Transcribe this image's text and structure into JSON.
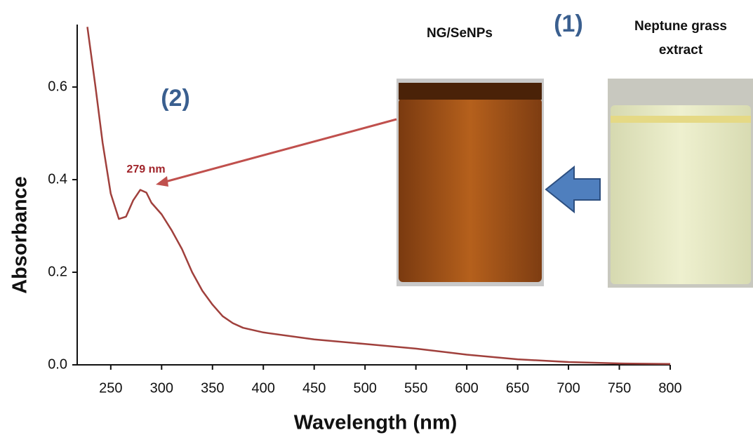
{
  "chart_data": {
    "type": "line",
    "x_label": "Wavelength (nm)",
    "y_label": "Absorbance",
    "annotations": {
      "panel_1": "(1)",
      "panel_2": "(2)",
      "peak": "279 nm",
      "photo_left": "NG/SeNPs",
      "photo_right": [
        "Neptune grass",
        "extract"
      ]
    },
    "x": [
      227,
      235,
      242,
      250,
      258,
      265,
      272,
      279,
      285,
      290,
      300,
      310,
      320,
      330,
      340,
      350,
      360,
      370,
      380,
      400,
      450,
      500,
      550,
      600,
      650,
      700,
      750,
      800
    ],
    "series": [
      {
        "color": "#a0403c",
        "values": [
          0.73,
          0.6,
          0.48,
          0.37,
          0.315,
          0.32,
          0.355,
          0.378,
          0.372,
          0.35,
          0.325,
          0.29,
          0.25,
          0.2,
          0.16,
          0.13,
          0.105,
          0.09,
          0.08,
          0.07,
          0.055,
          0.045,
          0.035,
          0.022,
          0.012,
          0.006,
          0.003,
          0.002
        ]
      }
    ],
    "xlim": [
      217,
      800
    ],
    "xticks": [
      250,
      300,
      350,
      400,
      450,
      500,
      550,
      600,
      650,
      700,
      750,
      800
    ],
    "ylim": [
      0,
      0.735
    ],
    "yticks": [
      {
        "value": 0,
        "label": "0.0"
      },
      0.2,
      0.4,
      0.6
    ],
    "grid": false
  }
}
